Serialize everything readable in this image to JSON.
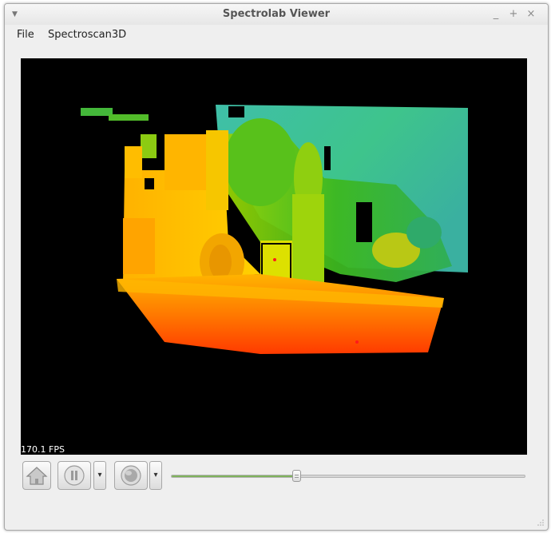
{
  "window": {
    "title": "Spectrolab Viewer",
    "menu_icon": "triangle-down-icon",
    "controls": {
      "minimize": "_",
      "maximize": "+",
      "close": "×"
    }
  },
  "menubar": {
    "items": [
      "File",
      "Spectroscan3D"
    ]
  },
  "viewer": {
    "fps_label": "170.1 FPS",
    "background": "#000000"
  },
  "toolbar": {
    "home_icon": "home-icon",
    "pause_icon": "pause-icon",
    "pause_dropdown_icon": "triangle-down-icon",
    "record_icon": "record-icon",
    "record_dropdown_icon": "triangle-down-icon",
    "dropdown_glyph": "▾",
    "slider": {
      "value_fraction": 0.355,
      "fill_color": "#7fb25c"
    }
  },
  "colors": {
    "near": "#ff3300",
    "mid": "#ffc400",
    "green": "#3db81f",
    "far": "#36bfb0"
  }
}
